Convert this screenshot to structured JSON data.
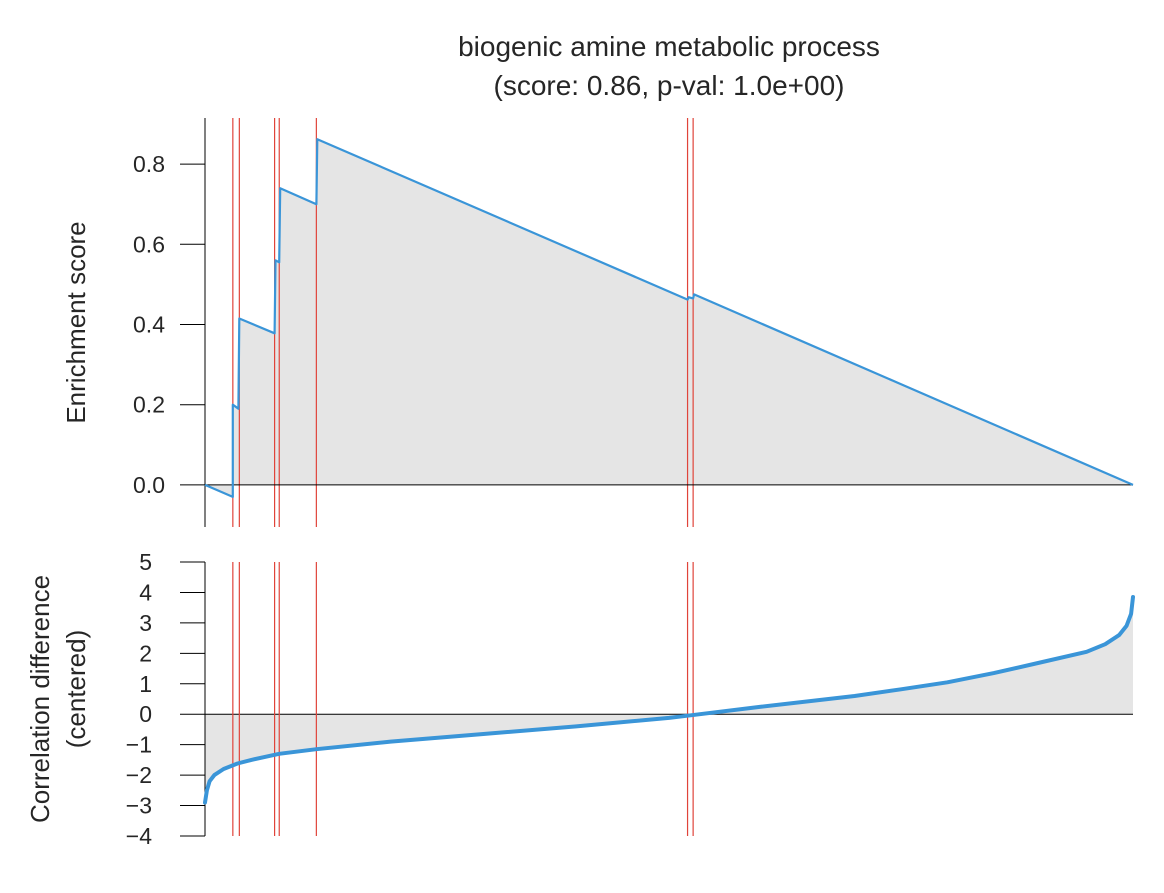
{
  "chart_data": {
    "type": "line",
    "title": "biogenic amine metabolic process",
    "subtitle": "(score: 0.86, p-val: 1.0e+00)",
    "colors": {
      "curve": "#3a95d8",
      "hits": "#e0443a",
      "fill": "#e5e5e5",
      "axis": "#000000",
      "text": "#262626"
    },
    "x_range": [
      0,
      1
    ],
    "hit_positions": [
      0.03,
      0.037,
      0.075,
      0.08,
      0.12,
      0.52,
      0.526
    ],
    "top_panel": {
      "ylabel": "Enrichment score",
      "ylim": [
        -0.09,
        0.9
      ],
      "yticks": [
        0.0,
        0.2,
        0.4,
        0.6,
        0.8
      ],
      "ytick_labels": [
        "0.0",
        "0.2",
        "0.4",
        "0.6",
        "0.8"
      ],
      "series": [
        {
          "x": [
            0.0,
            0.03,
            0.03,
            0.036,
            0.037,
            0.075,
            0.076,
            0.08,
            0.081,
            0.12,
            0.121,
            0.52,
            0.521,
            0.526,
            0.527,
            1.0
          ],
          "y": [
            0.0,
            -0.03,
            0.2,
            0.19,
            0.415,
            0.378,
            0.56,
            0.555,
            0.74,
            0.7,
            0.862,
            0.462,
            0.468,
            0.465,
            0.475,
            0.0
          ]
        }
      ]
    },
    "bottom_panel": {
      "ylabel": "Correlation difference",
      "ylabel2": "(centered)",
      "ylim": [
        -4,
        5
      ],
      "yticks": [
        -4,
        -3,
        -2,
        -1,
        0,
        1,
        2,
        3,
        4,
        5
      ],
      "ytick_labels": [
        "−4",
        "−3",
        "−2",
        "−1",
        "0",
        "1",
        "2",
        "3",
        "4",
        "5"
      ],
      "series": [
        {
          "x": [
            0.0,
            0.002,
            0.005,
            0.01,
            0.02,
            0.035,
            0.05,
            0.08,
            0.12,
            0.2,
            0.3,
            0.4,
            0.5,
            0.52,
            0.6,
            0.7,
            0.75,
            0.8,
            0.85,
            0.9,
            0.95,
            0.97,
            0.985,
            0.993,
            0.998,
            1.0
          ],
          "y": [
            -2.9,
            -2.5,
            -2.2,
            -2.0,
            -1.8,
            -1.62,
            -1.5,
            -1.3,
            -1.15,
            -0.9,
            -0.65,
            -0.4,
            -0.12,
            -0.05,
            0.25,
            0.6,
            0.82,
            1.05,
            1.35,
            1.7,
            2.05,
            2.3,
            2.6,
            2.9,
            3.3,
            3.85
          ]
        }
      ]
    }
  }
}
